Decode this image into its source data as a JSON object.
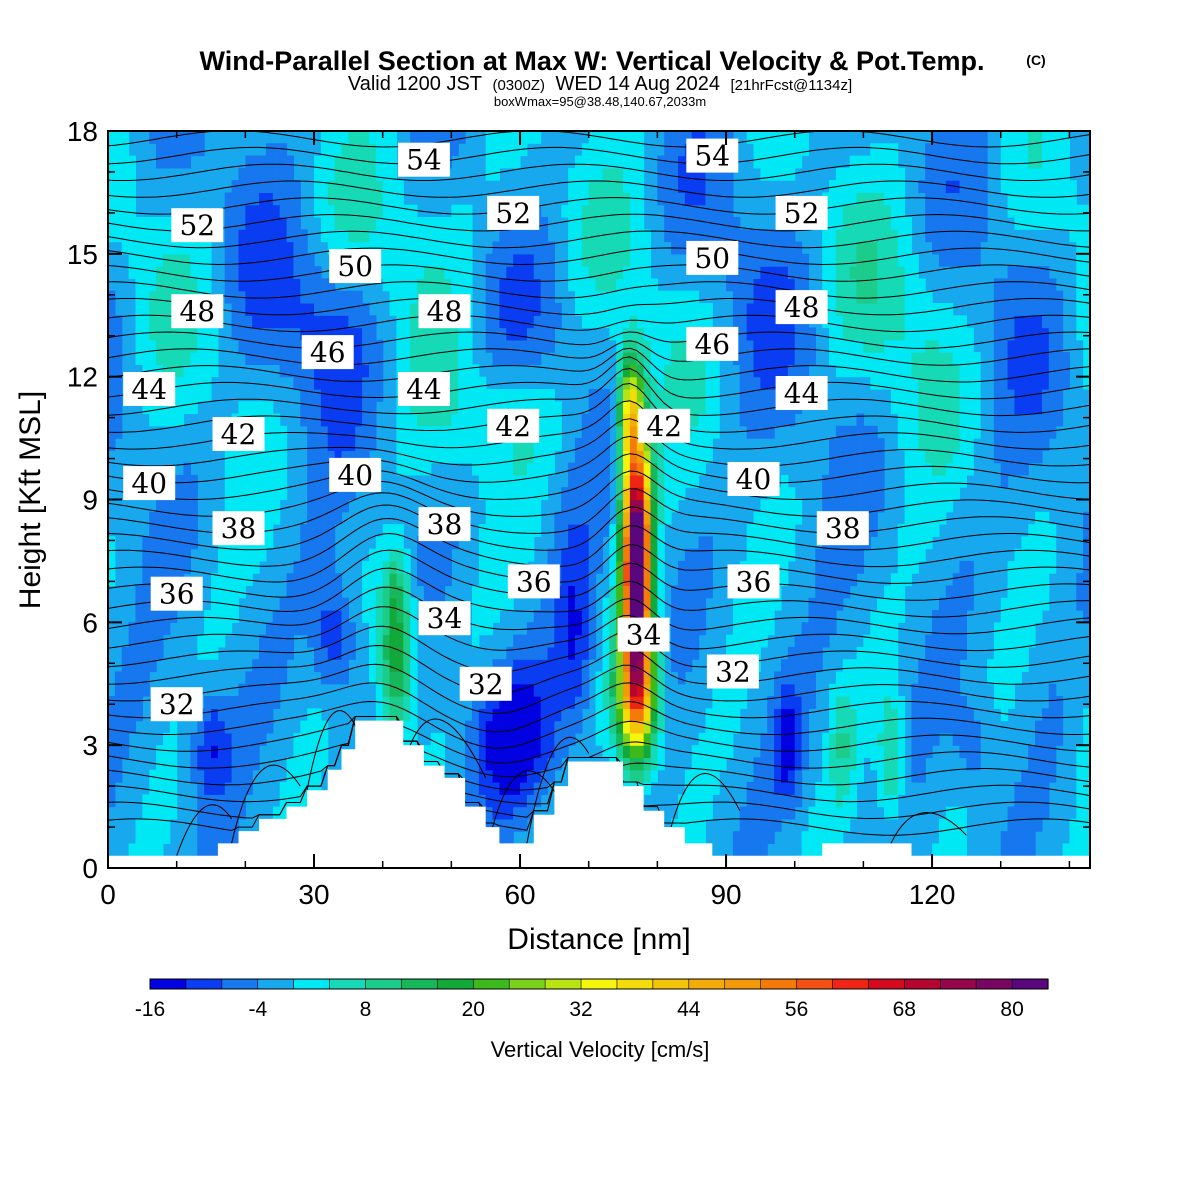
{
  "title": {
    "main": "Wind-Parallel Section at Max W: Vertical Velocity & Pot.Temp.",
    "copyright": "(C)",
    "valid_prefix": "Valid 1200 JST",
    "valid_utc": "(0300Z)",
    "valid_date": "WED 14 Aug 2024",
    "forecast": "[21hrFcst@1134z]",
    "box_info": "boxWmax=95@38.48,140.67,2033m"
  },
  "chart_data": {
    "type": "heatmap",
    "xlabel": "Distance [nm]",
    "ylabel": "Height [Kft MSL]",
    "xlim": [
      0,
      143
    ],
    "ylim": [
      0,
      18
    ],
    "x_ticks": [
      0,
      30,
      60,
      90,
      120
    ],
    "y_ticks": [
      0,
      3,
      6,
      9,
      12,
      15,
      18
    ],
    "variable": "Vertical Velocity [cm/s]",
    "colorbar": {
      "label": "Vertical Velocity [cm/s]",
      "levels": [
        -16,
        -12,
        -8,
        -4,
        0,
        4,
        8,
        12,
        16,
        20,
        24,
        28,
        32,
        36,
        40,
        44,
        48,
        52,
        56,
        60,
        64,
        68,
        72,
        76,
        80,
        84
      ],
      "tick_labels": [
        "-16",
        "-4",
        "8",
        "20",
        "32",
        "44",
        "56",
        "68",
        "80"
      ],
      "colors": [
        "#0000e0",
        "#0a3cf2",
        "#1677ee",
        "#17a8ee",
        "#00e8f4",
        "#16d9b6",
        "#1bcc8a",
        "#17b85c",
        "#12a83a",
        "#3cba1c",
        "#7cd21a",
        "#b8e414",
        "#f4f40c",
        "#f4dc0a",
        "#f4c40a",
        "#f4ac0a",
        "#f49a0a",
        "#f47a0a",
        "#f45014",
        "#ee2414",
        "#d40a1e",
        "#b4062e",
        "#96064c",
        "#7a0664",
        "#5a067c"
      ]
    },
    "updraft_cores": [
      {
        "x": 42,
        "top_kft": 7.8,
        "max_cms": 22
      },
      {
        "x": 77,
        "top_kft": 12.5,
        "max_cms": 95
      }
    ],
    "terrain_kft": [
      {
        "x": 0,
        "h": 0.3
      },
      {
        "x": 16,
        "h": 0.6
      },
      {
        "x": 19,
        "h": 0.9
      },
      {
        "x": 22,
        "h": 1.2
      },
      {
        "x": 26,
        "h": 1.5
      },
      {
        "x": 29,
        "h": 1.9
      },
      {
        "x": 32,
        "h": 2.4
      },
      {
        "x": 34,
        "h": 2.9
      },
      {
        "x": 36,
        "h": 3.6
      },
      {
        "x": 42,
        "h": 3.6
      },
      {
        "x": 43,
        "h": 3.0
      },
      {
        "x": 46,
        "h": 2.5
      },
      {
        "x": 49,
        "h": 2.2
      },
      {
        "x": 52,
        "h": 1.5
      },
      {
        "x": 55,
        "h": 1.0
      },
      {
        "x": 57,
        "h": 0.6
      },
      {
        "x": 62,
        "h": 1.3
      },
      {
        "x": 65,
        "h": 2.0
      },
      {
        "x": 67,
        "h": 2.6
      },
      {
        "x": 74,
        "h": 2.6
      },
      {
        "x": 75,
        "h": 2.0
      },
      {
        "x": 78,
        "h": 1.4
      },
      {
        "x": 81,
        "h": 1.0
      },
      {
        "x": 84,
        "h": 0.6
      },
      {
        "x": 88,
        "h": 0.3
      },
      {
        "x": 104,
        "h": 0.6
      },
      {
        "x": 117,
        "h": 0.3
      },
      {
        "x": 143,
        "h": 0.3
      }
    ],
    "isentrope_labels": [
      {
        "text": "54",
        "x": 46,
        "y": 17.3
      },
      {
        "text": "54",
        "x": 88,
        "y": 17.4
      },
      {
        "text": "52",
        "x": 13,
        "y": 15.7
      },
      {
        "text": "52",
        "x": 59,
        "y": 16.0
      },
      {
        "text": "52",
        "x": 101,
        "y": 16.0
      },
      {
        "text": "50",
        "x": 36,
        "y": 14.7
      },
      {
        "text": "50",
        "x": 88,
        "y": 14.9
      },
      {
        "text": "48",
        "x": 13,
        "y": 13.6
      },
      {
        "text": "48",
        "x": 49,
        "y": 13.6
      },
      {
        "text": "48",
        "x": 101,
        "y": 13.7
      },
      {
        "text": "46",
        "x": 32,
        "y": 12.6
      },
      {
        "text": "46",
        "x": 88,
        "y": 12.8
      },
      {
        "text": "44",
        "x": 6,
        "y": 11.7
      },
      {
        "text": "44",
        "x": 46,
        "y": 11.7
      },
      {
        "text": "44",
        "x": 101,
        "y": 11.6
      },
      {
        "text": "42",
        "x": 19,
        "y": 10.6
      },
      {
        "text": "42",
        "x": 59,
        "y": 10.8
      },
      {
        "text": "42",
        "x": 81,
        "y": 10.8
      },
      {
        "text": "40",
        "x": 6,
        "y": 9.4
      },
      {
        "text": "40",
        "x": 36,
        "y": 9.6
      },
      {
        "text": "40",
        "x": 94,
        "y": 9.5
      },
      {
        "text": "38",
        "x": 19,
        "y": 8.3
      },
      {
        "text": "38",
        "x": 49,
        "y": 8.4
      },
      {
        "text": "38",
        "x": 107,
        "y": 8.3
      },
      {
        "text": "36",
        "x": 10,
        "y": 6.7
      },
      {
        "text": "36",
        "x": 62,
        "y": 7.0
      },
      {
        "text": "36",
        "x": 94,
        "y": 7.0
      },
      {
        "text": "34",
        "x": 49,
        "y": 6.1
      },
      {
        "text": "34",
        "x": 78,
        "y": 5.7
      },
      {
        "text": "32",
        "x": 10,
        "y": 4.0
      },
      {
        "text": "32",
        "x": 55,
        "y": 4.5
      },
      {
        "text": "32",
        "x": 91,
        "y": 4.8
      }
    ]
  }
}
